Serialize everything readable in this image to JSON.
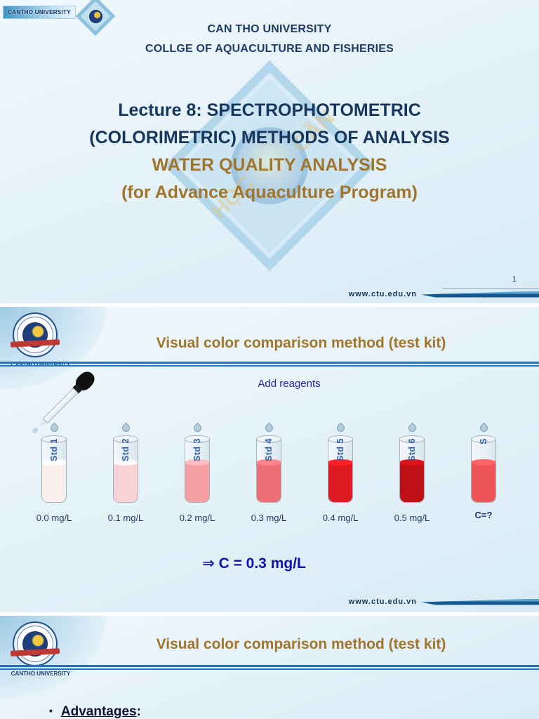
{
  "theme": {
    "navy": "#17365d",
    "brown": "#a1752c",
    "accent_blue": "#2a72b5",
    "caption_blue": "#2323b5",
    "result_blue": "#1212b2",
    "ribbon_blue": "#14588f",
    "slide_bg": "#e3f1f8"
  },
  "slide1": {
    "corner_badge": "CANTHO UNIVERSITY",
    "header": {
      "line1": "CAN THO UNIVERSITY",
      "line2": "COLLGE OF AQUACULTURE AND FISHERIES"
    },
    "title": {
      "line1": "Lecture 8: SPECTROPHOTOMETRIC",
      "line2": "(COLORIMETRIC) METHODS OF ANALYSIS"
    },
    "subtitle": {
      "line1": "WATER QUALITY ANALYSIS",
      "line2": "(for Advance Aquaculture Program)"
    },
    "watermark": {
      "text1": "HỌC",
      "text2": "CẦN"
    },
    "page_number": "1",
    "website": "www.ctu.edu.vn"
  },
  "slide2": {
    "logo_caption": "CANTHO UNIVERSITY",
    "title": "Visual color comparison method (test kit)",
    "caption": "Add reagents",
    "tubes": [
      {
        "label": "Std 1",
        "conc": "0.0 mg/L",
        "color": "#f8efec"
      },
      {
        "label": "Std 2",
        "conc": "0.1 mg/L",
        "color": "#f9d2d5"
      },
      {
        "label": "Std 3",
        "conc": "0.2 mg/L",
        "color": "#f59fa3"
      },
      {
        "label": "Std 4",
        "conc": "0.3 mg/L",
        "color": "#ef6f76"
      },
      {
        "label": "Std 5",
        "conc": "0.4 mg/L",
        "color": "#de1b22"
      },
      {
        "label": "Std 6",
        "conc": "0.5 mg/L",
        "color": "#bf1016"
      },
      {
        "label": "S",
        "conc": "C=?",
        "color": "#ee5458"
      }
    ],
    "result": "⇒ C = 0.3 mg/L",
    "website": "www.ctu.edu.vn"
  },
  "slide3": {
    "logo_caption": "CANTHO UNIVERSITY",
    "title": "Visual color comparison method (test kit)",
    "bullet_marker": "•",
    "bullet": "Advantages",
    "bullet_suffix": ":"
  }
}
